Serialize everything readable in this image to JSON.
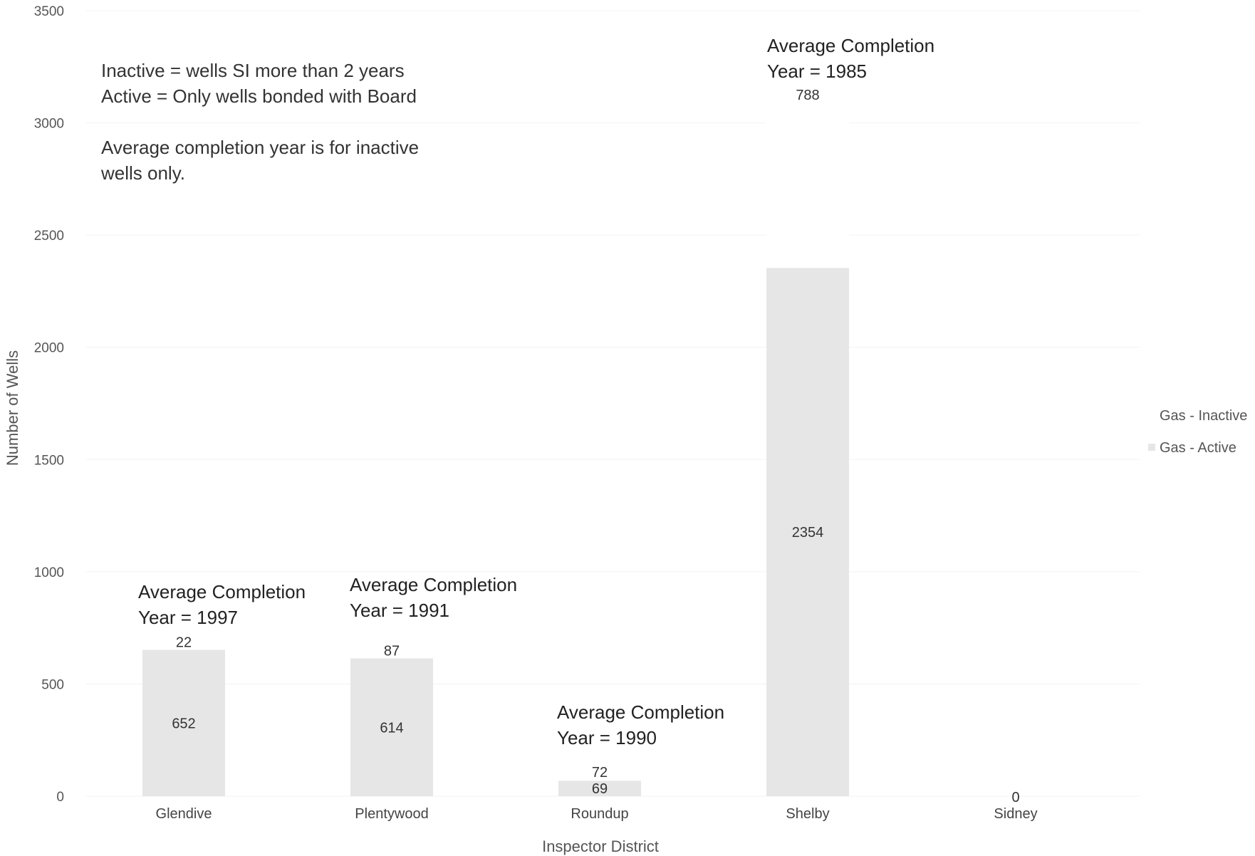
{
  "chart_data": {
    "type": "bar",
    "stacked": true,
    "categories": [
      "Glendive",
      "Plentywood",
      "Roundup",
      "Shelby",
      "Sidney"
    ],
    "series": [
      {
        "name": "Gas - Active",
        "values": [
          652,
          614,
          69,
          2354,
          0
        ],
        "color": "#e6e6e6"
      },
      {
        "name": "Gas - Inactive",
        "values": [
          22,
          87,
          72,
          788,
          0
        ],
        "color": "#ffffff"
      }
    ],
    "title": "",
    "xlabel": "Inspector District",
    "ylabel": "Number of Wells",
    "ylim": [
      0,
      3500
    ],
    "yticks": [
      0,
      500,
      1000,
      1500,
      2000,
      2500,
      3000,
      3500
    ],
    "legend_position": "right",
    "grid": true
  },
  "notes": [
    "Inactive = wells SI more than 2 years",
    "Active = Only wells bonded with Board",
    "Average completion year is for inactive",
    "wells only."
  ],
  "annotations": [
    {
      "category": "Glendive",
      "line1": "Average Completion",
      "line2": "Year = 1997"
    },
    {
      "category": "Plentywood",
      "line1": "Average Completion",
      "line2": "Year = 1991"
    },
    {
      "category": "Roundup",
      "line1": "Average Completion",
      "line2": "Year = 1990"
    },
    {
      "category": "Shelby",
      "line1": "Average Completion",
      "line2": "Year = 1985"
    }
  ]
}
